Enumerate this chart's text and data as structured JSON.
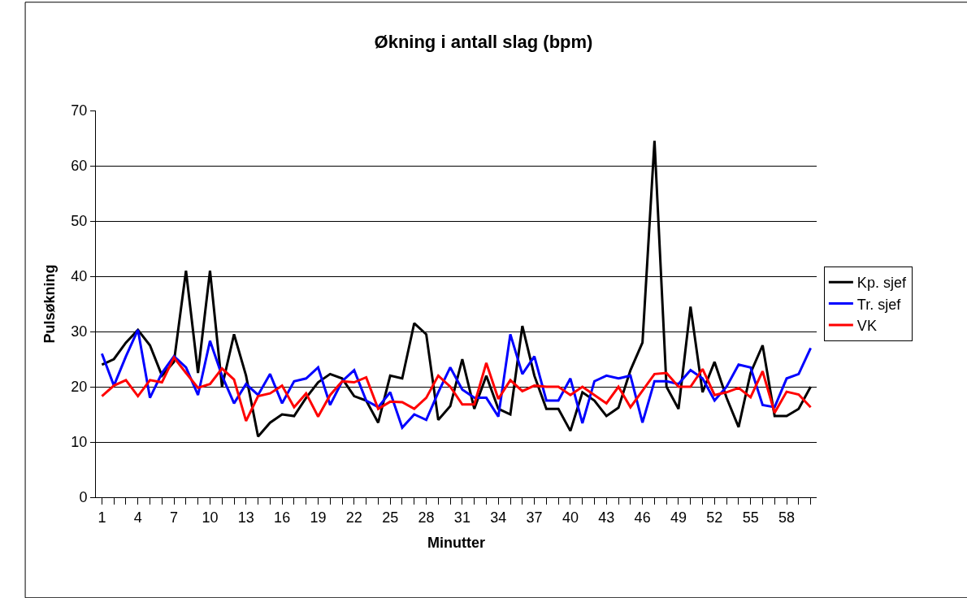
{
  "chart_data": {
    "type": "line",
    "title": "Økning i antall slag (bpm)",
    "xlabel": "Minutter",
    "ylabel": "Pulsøkning",
    "categories": [
      "1",
      null,
      null,
      "4",
      null,
      null,
      "7",
      null,
      null,
      "10",
      null,
      null,
      "13",
      null,
      null,
      "16",
      null,
      null,
      "19",
      null,
      null,
      "22",
      null,
      null,
      "25",
      null,
      null,
      "28",
      null,
      null,
      "31",
      null,
      null,
      "34",
      null,
      null,
      "37",
      null,
      null,
      "40",
      null,
      null,
      "43",
      null,
      null,
      "46",
      null,
      null,
      "49",
      null,
      null,
      "52",
      null,
      null,
      "55",
      null,
      null,
      "58",
      null,
      null
    ],
    "series": [
      {
        "name": "Kp. sjef",
        "color": "#000000",
        "values": [
          24,
          25,
          28,
          30.3,
          27.5,
          22,
          24.5,
          41,
          22.5,
          41,
          20,
          29.5,
          22,
          11,
          13.5,
          15,
          14.7,
          18,
          20.8,
          22.3,
          21.5,
          18.3,
          17.5,
          13.5,
          22,
          21.5,
          31.5,
          29.5,
          14,
          16.5,
          25,
          16,
          22,
          16,
          15,
          31,
          22,
          16,
          16,
          12,
          19,
          17.5,
          14.7,
          16.2,
          23,
          28,
          64.5,
          20,
          16,
          34.5,
          19,
          24.5,
          18,
          12.7,
          22.5,
          27.5,
          14.7,
          14.7,
          16,
          20
        ]
      },
      {
        "name": "Tr. sjef",
        "color": "#0000ff",
        "values": [
          26,
          20.2,
          25.5,
          30.3,
          18,
          22.5,
          25.5,
          23.5,
          18.5,
          28.3,
          22,
          17,
          20.5,
          18.5,
          22.3,
          17,
          21,
          21.5,
          23.5,
          16.7,
          21,
          23,
          17.5,
          16.3,
          19,
          12.6,
          15,
          14,
          19,
          23.5,
          19.5,
          18,
          18,
          14.6,
          29.5,
          22.3,
          25.5,
          17.5,
          17.5,
          21.5,
          13.4,
          21,
          22,
          21.5,
          22,
          13.5,
          21,
          21,
          20.5,
          23,
          21.5,
          17.5,
          20,
          24,
          23.5,
          16.7,
          16.3,
          21.5,
          22.3,
          27
        ]
      },
      {
        "name": "VK",
        "color": "#ff0000",
        "values": [
          18.3,
          20.2,
          21.2,
          18.3,
          21.2,
          20.8,
          25.3,
          22.5,
          19.8,
          20.5,
          23.3,
          21.3,
          13.8,
          18.3,
          18.8,
          20.2,
          16.3,
          18.8,
          14.6,
          18.5,
          21,
          20.8,
          21.7,
          16,
          17.3,
          17.2,
          16,
          18,
          22,
          20,
          16.8,
          16.8,
          24.3,
          17.8,
          21.2,
          19.2,
          20.2,
          20,
          20,
          18.5,
          20,
          18.5,
          17,
          20,
          16.3,
          19.3,
          22.3,
          22.5,
          20,
          20,
          23.2,
          18.5,
          19,
          19.8,
          18.1,
          22.8,
          15.3,
          19.1,
          18.6,
          16.3
        ]
      }
    ],
    "ylim": [
      0,
      70
    ],
    "yticks": [
      0,
      10,
      20,
      30,
      40,
      50,
      60,
      70
    ],
    "grid": "y",
    "legend": "right",
    "marker": "none",
    "line_style": "solid"
  }
}
